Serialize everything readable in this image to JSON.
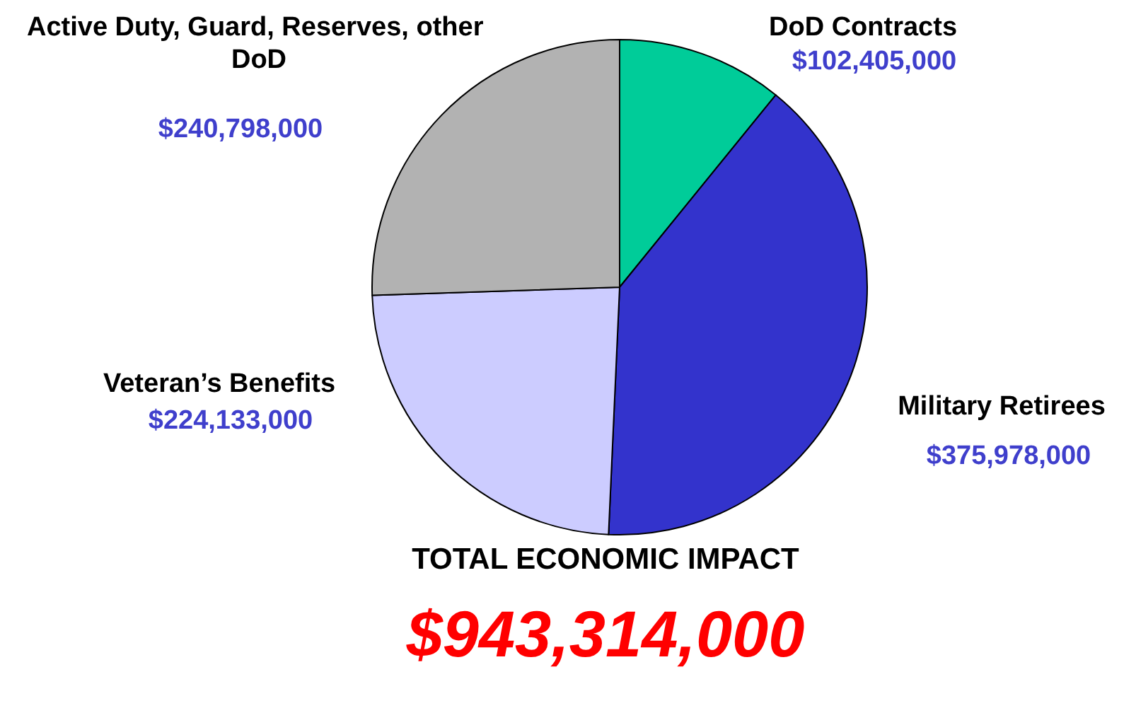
{
  "chart_data": {
    "type": "pie",
    "title": "TOTAL ECONOMIC IMPACT",
    "subtitle": "$943,314,000",
    "categories": [
      "DoD Contracts",
      "Military Retirees",
      "Veteran’s Benefits",
      "Active Duty, Guard, Reserves, other DoD"
    ],
    "values": [
      102405000,
      375978000,
      224133000,
      240798000
    ],
    "value_labels": [
      "$102,405,000",
      "$375,978,000",
      "$224,133,000",
      "$240,798,000"
    ],
    "colors": [
      "#00cc99",
      "#3333cc",
      "#ccccff",
      "#b2b2b2"
    ],
    "legend": false
  }
}
